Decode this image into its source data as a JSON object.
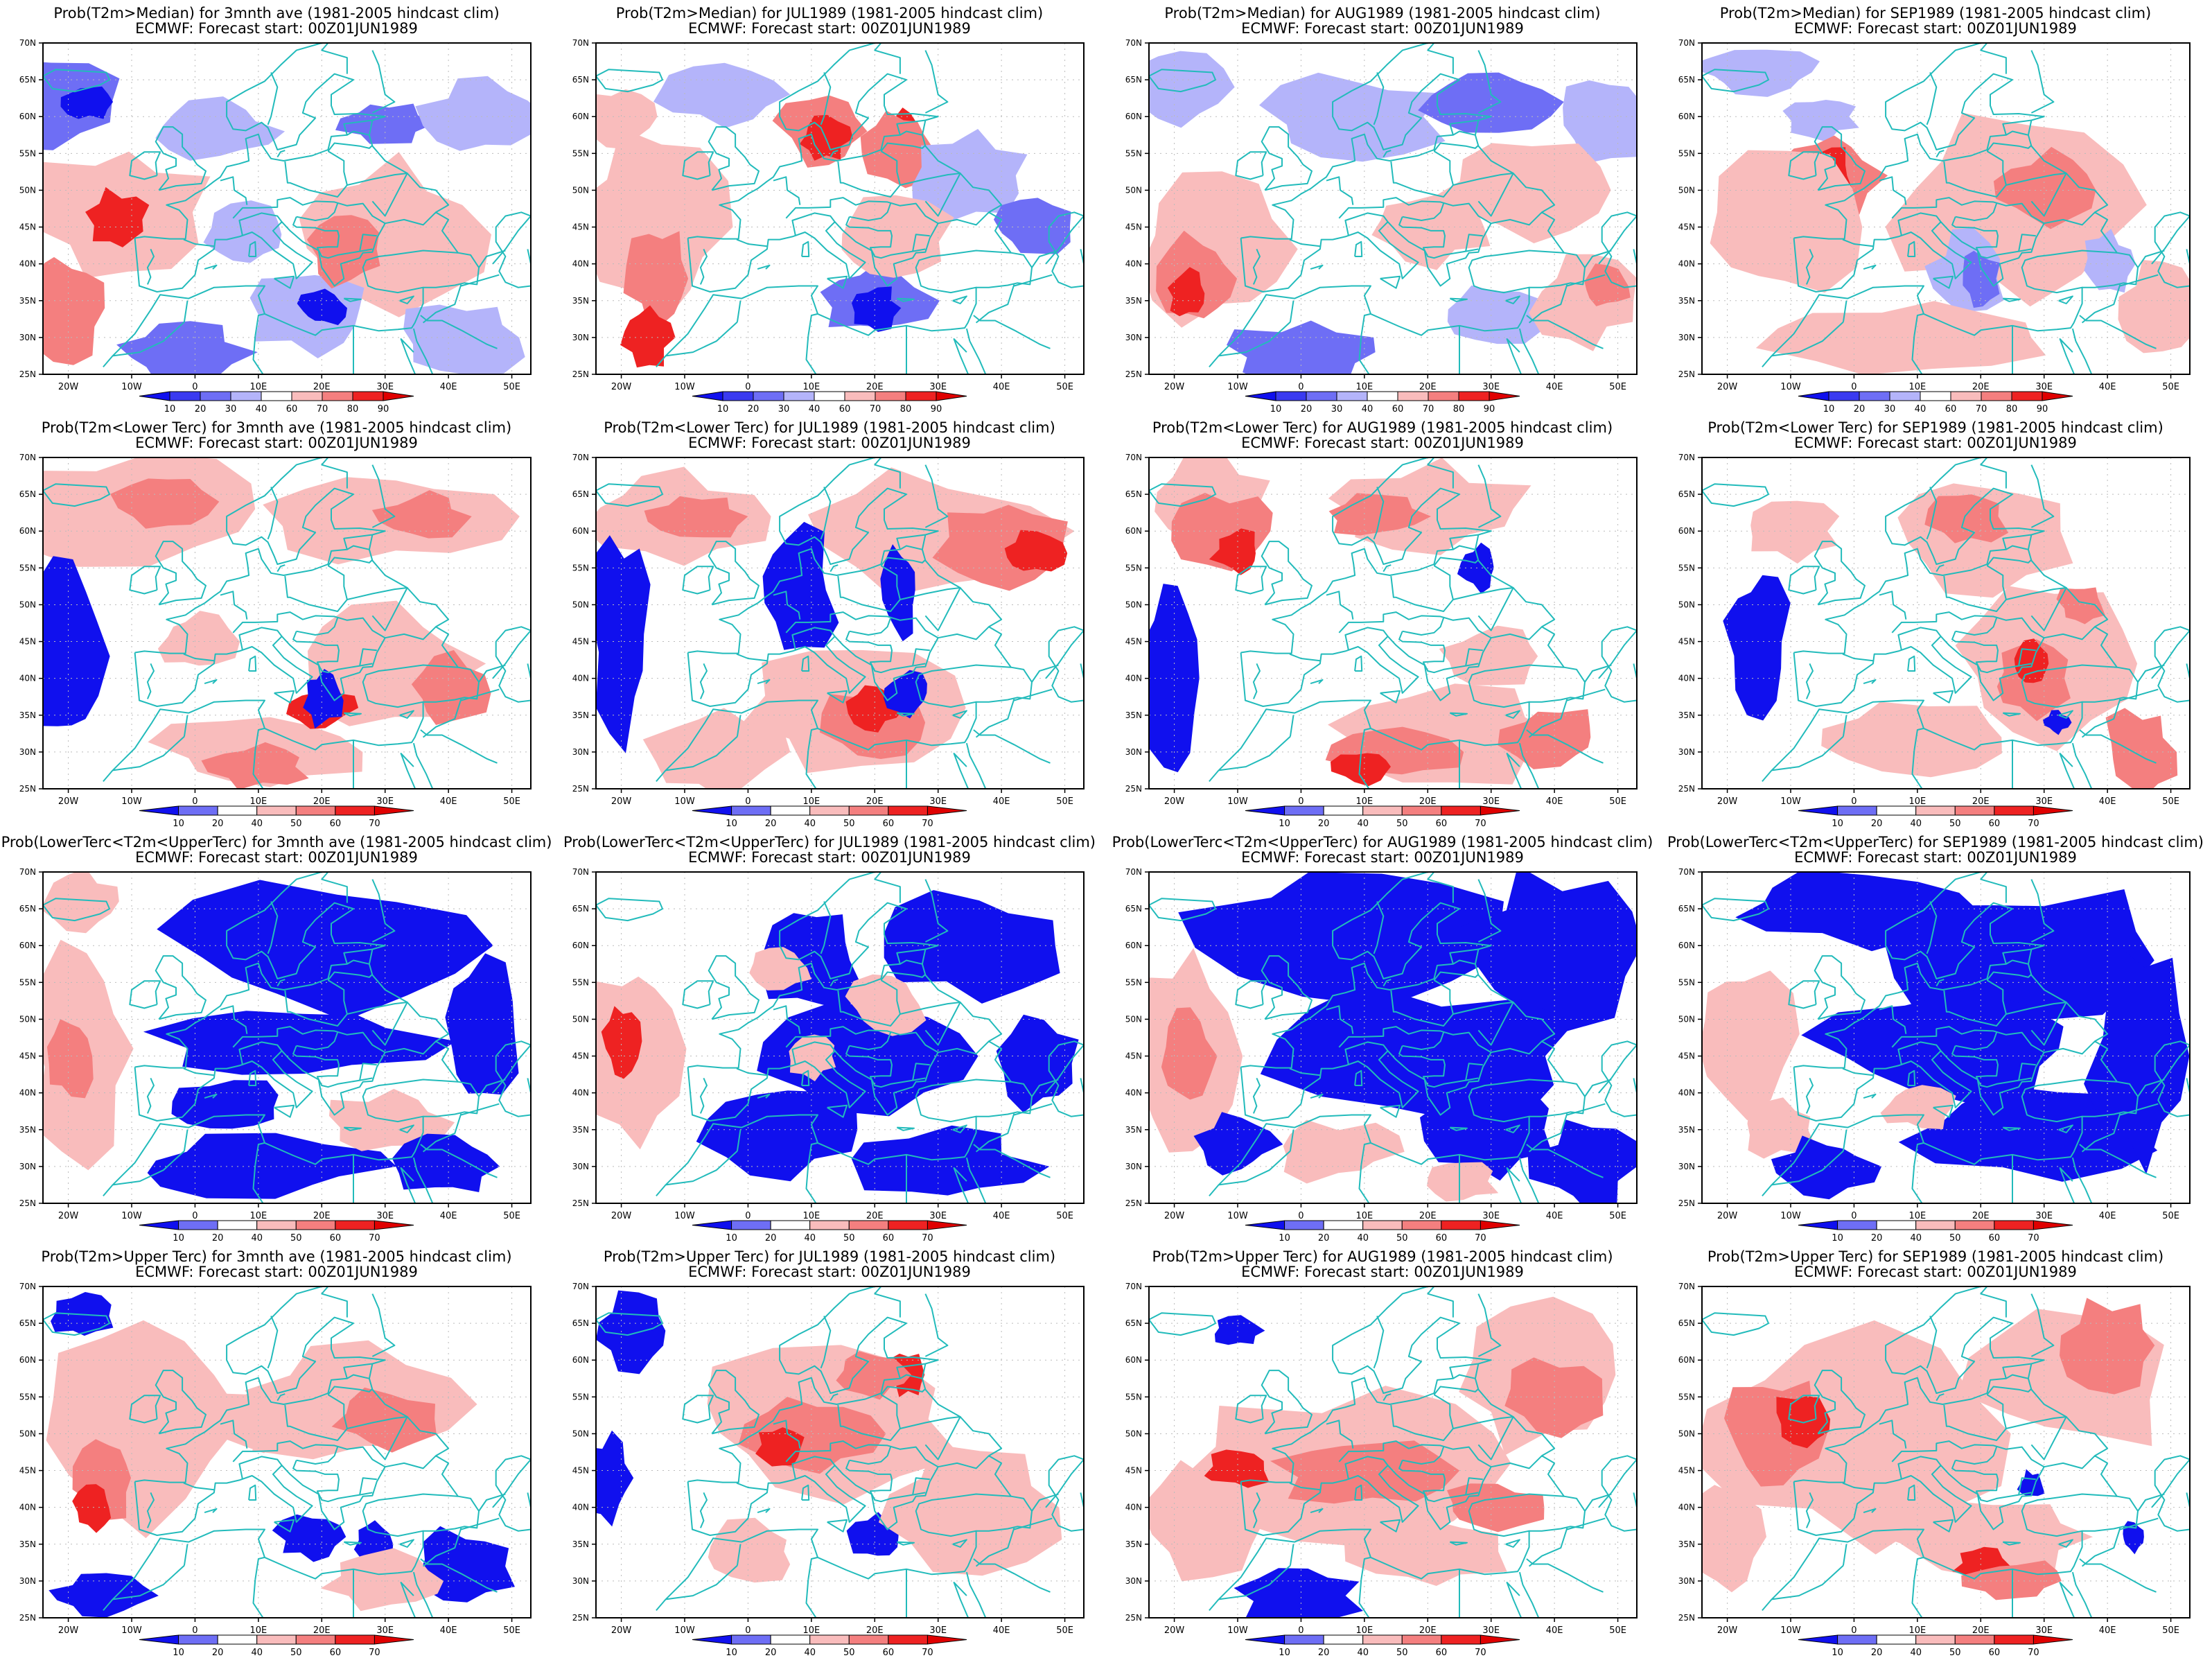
{
  "colors": {
    "blue_strong": "#1010ee",
    "blue_mid": "#6e6ef5",
    "blue_light": "#b4b4fa",
    "red_light": "#f9bcbc",
    "red_mid": "#f47f7f",
    "red_strong": "#ee2222",
    "red_max": "#e00000",
    "coast": "#22bbbb",
    "gridline": "#bbbbbb"
  },
  "map": {
    "lon_ticks": [
      "20W",
      "10W",
      "0",
      "10E",
      "20E",
      "30E",
      "40E",
      "50E"
    ],
    "lat_ticks": [
      "70N",
      "65N",
      "60N",
      "55N",
      "50N",
      "45N",
      "40N",
      "35N",
      "30N",
      "25N"
    ]
  },
  "colorbars": {
    "median": {
      "labels": [
        "10",
        "20",
        "30",
        "40",
        "60",
        "70",
        "80",
        "90"
      ],
      "colors": [
        "#1010ee",
        "#3a3af0",
        "#6e6ef5",
        "#b4b4fa",
        "#ffffff",
        "#f9bcbc",
        "#f47f7f",
        "#ee2222",
        "#e00000"
      ]
    },
    "tercile": {
      "labels": [
        "10",
        "20",
        "40",
        "50",
        "60",
        "70"
      ],
      "colors": [
        "#1010ee",
        "#6e6ef5",
        "#ffffff",
        "#f9bcbc",
        "#f47f7f",
        "#ee2222",
        "#e00000"
      ]
    }
  },
  "panels": [
    {
      "title": "Prob(T2m>Median) for 3mnth ave (1981-2005 hindcast clim)",
      "subtitle": "ECMWF: Forecast start: 00Z01JUN1989",
      "colorbar": "median"
    },
    {
      "title": "Prob(T2m>Median) for JUL1989 (1981-2005 hindcast clim)",
      "subtitle": "ECMWF: Forecast start: 00Z01JUN1989",
      "colorbar": "median"
    },
    {
      "title": "Prob(T2m>Median) for AUG1989 (1981-2005 hindcast clim)",
      "subtitle": "ECMWF: Forecast start: 00Z01JUN1989",
      "colorbar": "median"
    },
    {
      "title": "Prob(T2m>Median) for SEP1989 (1981-2005 hindcast clim)",
      "subtitle": "ECMWF: Forecast start: 00Z01JUN1989",
      "colorbar": "median"
    },
    {
      "title": "Prob(T2m<Lower Terc) for 3mnth ave (1981-2005 hindcast clim)",
      "subtitle": "ECMWF: Forecast start: 00Z01JUN1989",
      "colorbar": "tercile"
    },
    {
      "title": "Prob(T2m<Lower Terc) for JUL1989 (1981-2005 hindcast clim)",
      "subtitle": "ECMWF: Forecast start: 00Z01JUN1989",
      "colorbar": "tercile"
    },
    {
      "title": "Prob(T2m<Lower Terc) for AUG1989 (1981-2005 hindcast clim)",
      "subtitle": "ECMWF: Forecast start: 00Z01JUN1989",
      "colorbar": "tercile"
    },
    {
      "title": "Prob(T2m<Lower Terc) for SEP1989 (1981-2005 hindcast clim)",
      "subtitle": "ECMWF: Forecast start: 00Z01JUN1989",
      "colorbar": "tercile"
    },
    {
      "title": "Prob(LowerTerc<T2m<UpperTerc) for 3mnth ave (1981-2005 hindcast clim)",
      "subtitle": "ECMWF: Forecast start: 00Z01JUN1989",
      "colorbar": "tercile"
    },
    {
      "title": "Prob(LowerTerc<T2m<UpperTerc) for JUL1989 (1981-2005 hindcast clim)",
      "subtitle": "ECMWF: Forecast start: 00Z01JUN1989",
      "colorbar": "tercile"
    },
    {
      "title": "Prob(LowerTerc<T2m<UpperTerc) for AUG1989 (1981-2005 hindcast clim)",
      "subtitle": "ECMWF: Forecast start: 00Z01JUN1989",
      "colorbar": "tercile"
    },
    {
      "title": "Prob(LowerTerc<T2m<UpperTerc) for SEP1989 (1981-2005 hindcast clim)",
      "subtitle": "ECMWF: Forecast start: 00Z01JUN1989",
      "colorbar": "tercile"
    },
    {
      "title": "Prob(T2m>Upper Terc) for 3mnth ave (1981-2005 hindcast clim)",
      "subtitle": "ECMWF: Forecast start: 00Z01JUN1989",
      "colorbar": "tercile"
    },
    {
      "title": "Prob(T2m>Upper Terc) for JUL1989 (1981-2005 hindcast clim)",
      "subtitle": "ECMWF: Forecast start: 00Z01JUN1989",
      "colorbar": "tercile"
    },
    {
      "title": "Prob(T2m>Upper Terc) for AUG1989 (1981-2005 hindcast clim)",
      "subtitle": "ECMWF: Forecast start: 00Z01JUN1989",
      "colorbar": "tercile"
    },
    {
      "title": "Prob(T2m>Upper Terc) for SEP1989 (1981-2005 hindcast clim)",
      "subtitle": "ECMWF: Forecast start: 00Z01JUN1989",
      "colorbar": "tercile"
    }
  ]
}
